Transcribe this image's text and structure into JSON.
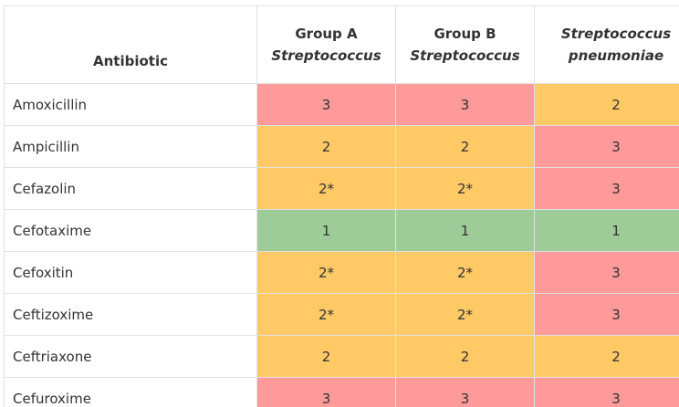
{
  "table": {
    "headers": [
      {
        "lines": [
          {
            "text": "Antibiotic",
            "italic": false
          }
        ]
      },
      {
        "lines": [
          {
            "text": "Group A",
            "italic": false
          },
          {
            "text": "Streptococcus",
            "italic": true
          }
        ]
      },
      {
        "lines": [
          {
            "text": "Group B",
            "italic": false
          },
          {
            "text": "Streptococcus",
            "italic": true
          }
        ]
      },
      {
        "lines": [
          {
            "text": "Streptococcus",
            "italic": true
          },
          {
            "text": "pneumoniae",
            "italic": true
          }
        ]
      }
    ],
    "rows": [
      {
        "name": "Amoxicillin",
        "values": [
          "3",
          "3",
          "2"
        ]
      },
      {
        "name": "Ampicillin",
        "values": [
          "2",
          "2",
          "3"
        ]
      },
      {
        "name": "Cefazolin",
        "values": [
          "2*",
          "2*",
          "3"
        ]
      },
      {
        "name": "Cefotaxime",
        "values": [
          "1",
          "1",
          "1"
        ]
      },
      {
        "name": "Cefoxitin",
        "values": [
          "2*",
          "2*",
          "3"
        ]
      },
      {
        "name": "Ceftizoxime",
        "values": [
          "2*",
          "2*",
          "3"
        ]
      },
      {
        "name": "Ceftriaxone",
        "values": [
          "2",
          "2",
          "2"
        ]
      },
      {
        "name": "Cefuroxime",
        "values": [
          "3",
          "3",
          "3"
        ]
      }
    ]
  },
  "colors": {
    "1": "#9dcc98",
    "2": "#ffc966",
    "2*": "#ffc966",
    "3": "#ff9a9a",
    "border": "#e2e2e2",
    "text": "#333333"
  }
}
